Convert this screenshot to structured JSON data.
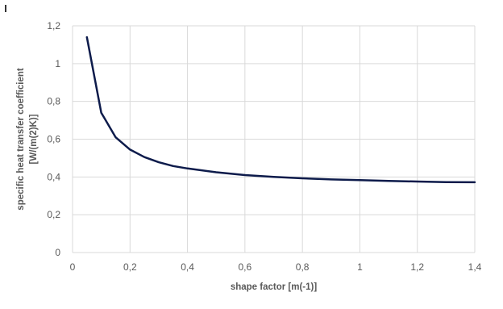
{
  "chart_data": {
    "type": "line",
    "title": "",
    "xlabel": "shape factor [m(-1)]",
    "ylabel_line1": "specific heat transfer coefficient",
    "ylabel_line2": "[W/(m(2)K)]",
    "xlim": [
      0,
      1.4
    ],
    "ylim": [
      0,
      1.2
    ],
    "xticks": [
      "0",
      "0,2",
      "0,4",
      "0,6",
      "0,8",
      "1",
      "1,2",
      "1,4"
    ],
    "yticks": [
      "0",
      "0,2",
      "0,4",
      "0,6",
      "0,8",
      "1",
      "1,2"
    ],
    "xtick_values": [
      0,
      0.2,
      0.4,
      0.6,
      0.8,
      1.0,
      1.2,
      1.4
    ],
    "ytick_values": [
      0,
      0.2,
      0.4,
      0.6,
      0.8,
      1.0,
      1.2
    ],
    "grid": true,
    "legend": "none",
    "series": [
      {
        "color": "#0d1b4b",
        "x": [
          0.05,
          0.1,
          0.15,
          0.2,
          0.25,
          0.3,
          0.35,
          0.4,
          0.5,
          0.6,
          0.7,
          0.8,
          0.9,
          1.0,
          1.1,
          1.2,
          1.3,
          1.4
        ],
        "y": [
          1.14,
          0.74,
          0.61,
          0.545,
          0.505,
          0.478,
          0.458,
          0.445,
          0.425,
          0.41,
          0.4,
          0.393,
          0.387,
          0.383,
          0.379,
          0.376,
          0.373,
          0.372
        ]
      }
    ]
  }
}
